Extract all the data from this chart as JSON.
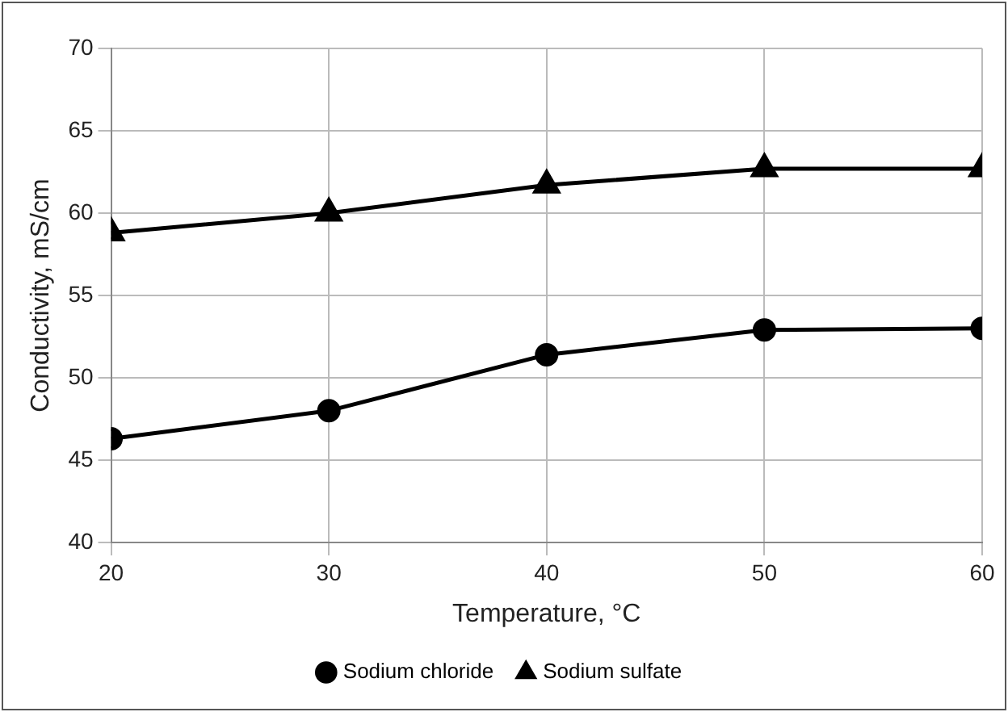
{
  "chart_data": {
    "type": "line",
    "xlabel": "Temperature, °C",
    "ylabel": "Conductivity, mS/cm",
    "x": [
      20,
      30,
      40,
      50,
      60
    ],
    "series": [
      {
        "name": "Sodium chloride",
        "color": "#000000",
        "marker": "circle",
        "values": [
          46.3,
          48.0,
          51.4,
          52.9,
          53.0
        ]
      },
      {
        "name": "Sodium sulfate",
        "color": "#000000",
        "marker": "triangle",
        "values": [
          58.8,
          60.0,
          61.7,
          62.7,
          62.7
        ]
      }
    ],
    "xlim": [
      20,
      60
    ],
    "xticks": [
      20,
      30,
      40,
      50,
      60
    ],
    "ylim": [
      40,
      70
    ],
    "yticks": [
      40,
      45,
      50,
      55,
      60,
      65,
      70
    ],
    "grid": true,
    "legend": "bottom",
    "line_style": "solid"
  }
}
